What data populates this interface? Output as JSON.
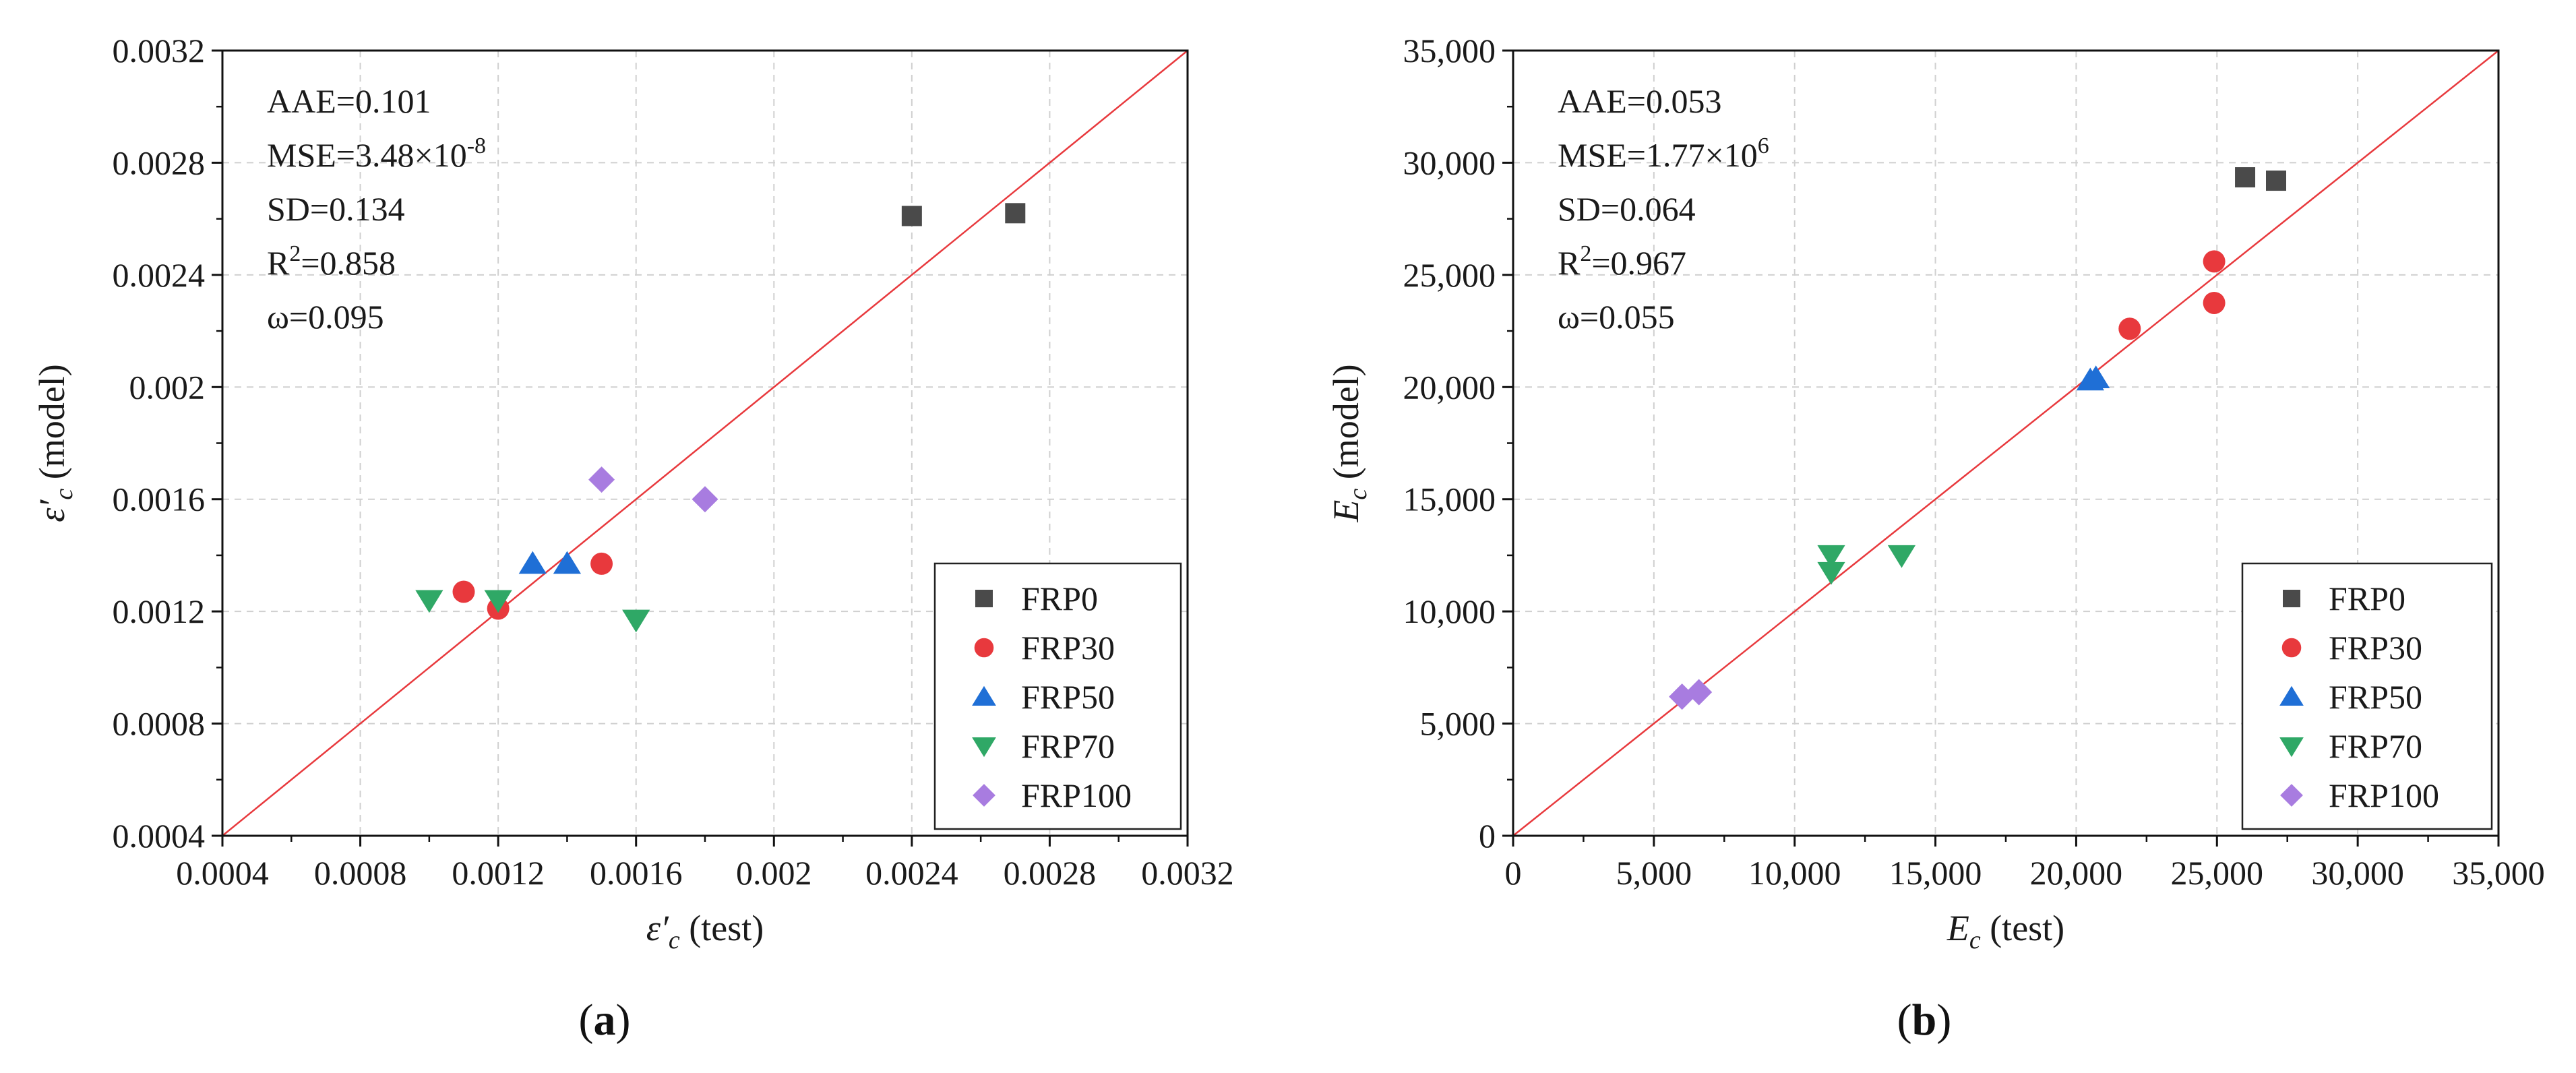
{
  "colors": {
    "FRP0": "#4a4a4a",
    "FRP30": "#e8393d",
    "FRP50": "#1f6fd6",
    "FRP70": "#2fa866",
    "FRP100": "#a87ce0",
    "ref_line": "#e8393d",
    "grid": "#d0d0d0"
  },
  "chart_data": [
    {
      "type": "scatter",
      "panel_caption": {
        "open": "(",
        "letter": "a",
        "close": ")"
      },
      "xlim": [
        0.0004,
        0.0032
      ],
      "ylim": [
        0.0004,
        0.0032
      ],
      "xticks": [
        0.0004,
        0.0008,
        0.0012,
        0.0016,
        0.002,
        0.0024,
        0.0028,
        0.0032
      ],
      "yticks": [
        0.0004,
        0.0008,
        0.0012,
        0.0016,
        0.002,
        0.0024,
        0.0028,
        0.0032
      ],
      "xtick_labels": [
        "0.0004",
        "0.0008",
        "0.0012",
        "0.0016",
        "0.002",
        "0.0024",
        "0.0028",
        "0.0032"
      ],
      "ytick_labels": [
        "0.0004",
        "0.0008",
        "0.0012",
        "0.0016",
        "0.002",
        "0.0024",
        "0.0028",
        "0.0032"
      ],
      "xlabel": {
        "symbol": "ε′",
        "sub": "c",
        "rest": " (test)"
      },
      "ylabel": {
        "symbol": "ε′",
        "sub": "c",
        "rest": " (model)"
      },
      "grid": true,
      "reference_line": "y = x",
      "legend_position": "bottom-right",
      "stats": [
        {
          "text": "AAE=0.101"
        },
        {
          "text": "MSE=3.48×10",
          "sup": "-8"
        },
        {
          "text": "SD=0.134"
        },
        {
          "text": "R",
          "sup": "2",
          "after": "=0.858"
        },
        {
          "text": "ω=0.095"
        }
      ],
      "series": [
        {
          "name": "FRP0",
          "marker": "square",
          "points": [
            [
              0.0024,
              0.00261
            ],
            [
              0.0027,
              0.00262
            ]
          ]
        },
        {
          "name": "FRP30",
          "marker": "circle",
          "points": [
            [
              0.0011,
              0.00127
            ],
            [
              0.0012,
              0.00121
            ],
            [
              0.0015,
              0.00137
            ]
          ]
        },
        {
          "name": "FRP50",
          "marker": "triangle-up",
          "points": [
            [
              0.0013,
              0.00137
            ],
            [
              0.0014,
              0.00137
            ]
          ]
        },
        {
          "name": "FRP70",
          "marker": "triangle-down",
          "points": [
            [
              0.001,
              0.00124
            ],
            [
              0.0012,
              0.00124
            ],
            [
              0.0016,
              0.00117
            ]
          ]
        },
        {
          "name": "FRP100",
          "marker": "diamond",
          "points": [
            [
              0.0015,
              0.00167
            ],
            [
              0.0018,
              0.0016
            ]
          ]
        }
      ]
    },
    {
      "type": "scatter",
      "panel_caption": {
        "open": "(",
        "letter": "b",
        "close": ")"
      },
      "xlim": [
        0,
        35000
      ],
      "ylim": [
        0,
        35000
      ],
      "xticks": [
        0,
        5000,
        10000,
        15000,
        20000,
        25000,
        30000,
        35000
      ],
      "yticks": [
        0,
        5000,
        10000,
        15000,
        20000,
        25000,
        30000,
        35000
      ],
      "xtick_labels": [
        "0",
        "5,000",
        "10,000",
        "15,000",
        "20,000",
        "25,000",
        "30,000",
        "35,000"
      ],
      "ytick_labels": [
        "0",
        "5,000",
        "10,000",
        "15,000",
        "20,000",
        "25,000",
        "30,000",
        "35,000"
      ],
      "xlabel": {
        "symbol": "E",
        "sub": "c",
        "rest": " (test)"
      },
      "ylabel": {
        "symbol": "E",
        "sub": "c",
        "rest": " (model)"
      },
      "grid": true,
      "reference_line": "y = x",
      "legend_position": "bottom-right",
      "stats": [
        {
          "text": "AAE=0.053"
        },
        {
          "text": "MSE=1.77×10",
          "sup": "6"
        },
        {
          "text": "SD=0.064"
        },
        {
          "text": "R",
          "sup": "2",
          "after": "=0.967"
        },
        {
          "text": "ω=0.055"
        }
      ],
      "series": [
        {
          "name": "FRP0",
          "marker": "square",
          "points": [
            [
              26000,
              29350
            ],
            [
              27100,
              29200
            ]
          ]
        },
        {
          "name": "FRP30",
          "marker": "circle",
          "points": [
            [
              21900,
              22600
            ],
            [
              24900,
              25600
            ],
            [
              24900,
              23750
            ]
          ]
        },
        {
          "name": "FRP50",
          "marker": "triangle-up",
          "points": [
            [
              20500,
              20300
            ],
            [
              20700,
              20400
            ]
          ]
        },
        {
          "name": "FRP70",
          "marker": "triangle-down",
          "points": [
            [
              11300,
              12500
            ],
            [
              11300,
              11750
            ],
            [
              13800,
              12500
            ]
          ]
        },
        {
          "name": "FRP100",
          "marker": "diamond",
          "points": [
            [
              6000,
              6200
            ],
            [
              6600,
              6400
            ]
          ]
        }
      ]
    }
  ]
}
